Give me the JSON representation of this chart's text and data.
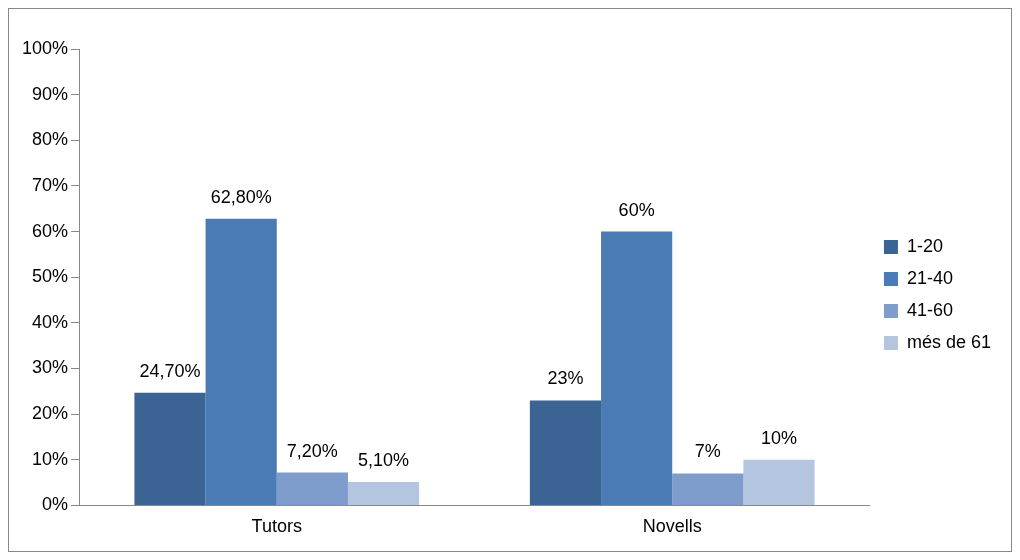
{
  "chart_data": {
    "type": "bar",
    "categories": [
      "Tutors",
      "Novells"
    ],
    "series": [
      {
        "name": "1-20",
        "color": "#3b6394",
        "values": [
          24.7,
          23
        ],
        "value_labels": [
          "24,70%",
          "23%"
        ]
      },
      {
        "name": "21-40",
        "color": "#4a7bb5",
        "values": [
          62.8,
          60
        ],
        "value_labels": [
          "62,80%",
          "60%"
        ]
      },
      {
        "name": "41-60",
        "color": "#7f9dcc",
        "values": [
          7.2,
          7
        ],
        "value_labels": [
          "7,20%",
          "7%"
        ]
      },
      {
        "name": "més de 61",
        "color": "#b4c5e0",
        "values": [
          5.1,
          10
        ],
        "value_labels": [
          "5,10%",
          "10%"
        ]
      }
    ],
    "ylim": [
      0,
      100
    ],
    "yticks": [
      {
        "value": 0,
        "label": "0%"
      },
      {
        "value": 10,
        "label": "10%"
      },
      {
        "value": 20,
        "label": "20%"
      },
      {
        "value": 30,
        "label": "30%"
      },
      {
        "value": 40,
        "label": "40%"
      },
      {
        "value": 50,
        "label": "50%"
      },
      {
        "value": 60,
        "label": "60%"
      },
      {
        "value": 70,
        "label": "70%"
      },
      {
        "value": 80,
        "label": "80%"
      },
      {
        "value": 90,
        "label": "90%"
      },
      {
        "value": 100,
        "label": "100%"
      }
    ],
    "grid": false,
    "legend": "right"
  }
}
